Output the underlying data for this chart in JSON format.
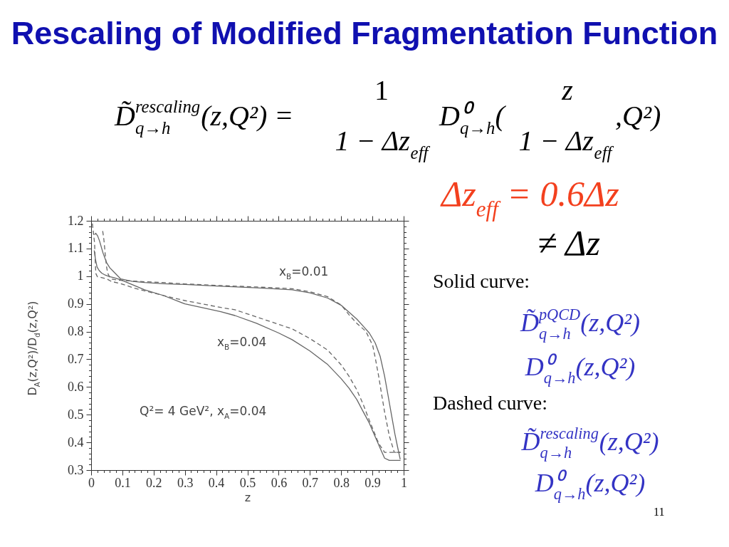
{
  "chart_data": {
    "type": "line",
    "title": "Rescaling of Modified Fragmentation Function",
    "xlabel": "z",
    "ylabel": "D$_{A}$(z,Q²)/D$_{d}$(z,Q²)",
    "xlim": [
      0,
      1
    ],
    "ylim": [
      0.3,
      1.2
    ],
    "xticks": [
      0,
      {
        "value": 0.02,
        "label": null
      },
      {
        "value": 0.04,
        "label": null
      },
      {
        "value": 0.06,
        "label": null
      },
      {
        "value": 0.08,
        "label": null
      },
      0.1,
      {
        "value": 0.12,
        "label": null
      },
      {
        "value": 0.14,
        "label": null
      },
      {
        "value": 0.16,
        "label": null
      },
      {
        "value": 0.18,
        "label": null
      },
      0.2,
      {
        "value": 0.22,
        "label": null
      },
      {
        "value": 0.24,
        "label": null
      },
      {
        "value": 0.26,
        "label": null
      },
      {
        "value": 0.28,
        "label": null
      },
      0.3,
      {
        "value": 0.32,
        "label": null
      },
      {
        "value": 0.34,
        "label": null
      },
      {
        "value": 0.36,
        "label": null
      },
      {
        "value": 0.38,
        "label": null
      },
      0.4,
      {
        "value": 0.42,
        "label": null
      },
      {
        "value": 0.44,
        "label": null
      },
      {
        "value": 0.46,
        "label": null
      },
      {
        "value": 0.48,
        "label": null
      },
      0.5,
      {
        "value": 0.52,
        "label": null
      },
      {
        "value": 0.54,
        "label": null
      },
      {
        "value": 0.56,
        "label": null
      },
      {
        "value": 0.58,
        "label": null
      },
      0.6,
      {
        "value": 0.62,
        "label": null
      },
      {
        "value": 0.64,
        "label": null
      },
      {
        "value": 0.66,
        "label": null
      },
      {
        "value": 0.68,
        "label": null
      },
      0.7,
      {
        "value": 0.72,
        "label": null
      },
      {
        "value": 0.74,
        "label": null
      },
      {
        "value": 0.76,
        "label": null
      },
      {
        "value": 0.78,
        "label": null
      },
      0.8,
      {
        "value": 0.82,
        "label": null
      },
      {
        "value": 0.84,
        "label": null
      },
      {
        "value": 0.86,
        "label": null
      },
      {
        "value": 0.88,
        "label": null
      },
      0.9,
      {
        "value": 0.92,
        "label": null
      },
      {
        "value": 0.94,
        "label": null
      },
      {
        "value": 0.96,
        "label": null
      },
      {
        "value": 0.98,
        "label": null
      },
      1
    ],
    "yticks": [
      0.3,
      {
        "value": 0.32,
        "label": null
      },
      {
        "value": 0.34,
        "label": null
      },
      {
        "value": 0.36,
        "label": null
      },
      {
        "value": 0.38,
        "label": null
      },
      0.4,
      {
        "value": 0.42,
        "label": null
      },
      {
        "value": 0.44,
        "label": null
      },
      {
        "value": 0.46,
        "label": null
      },
      {
        "value": 0.48,
        "label": null
      },
      0.5,
      {
        "value": 0.52,
        "label": null
      },
      {
        "value": 0.54,
        "label": null
      },
      {
        "value": 0.56,
        "label": null
      },
      {
        "value": 0.58,
        "label": null
      },
      0.6,
      {
        "value": 0.62,
        "label": null
      },
      {
        "value": 0.64,
        "label": null
      },
      {
        "value": 0.66,
        "label": null
      },
      {
        "value": 0.68,
        "label": null
      },
      0.7,
      {
        "value": 0.72,
        "label": null
      },
      {
        "value": 0.74,
        "label": null
      },
      {
        "value": 0.76,
        "label": null
      },
      {
        "value": 0.78,
        "label": null
      },
      0.8,
      {
        "value": 0.82,
        "label": null
      },
      {
        "value": 0.84,
        "label": null
      },
      {
        "value": 0.86,
        "label": null
      },
      {
        "value": 0.88,
        "label": null
      },
      0.9,
      {
        "value": 0.92,
        "label": null
      },
      {
        "value": 0.94,
        "label": null
      },
      {
        "value": 0.96,
        "label": null
      },
      {
        "value": 0.98,
        "label": null
      },
      1,
      {
        "value": 1.02,
        "label": null
      },
      {
        "value": 1.04,
        "label": null
      },
      {
        "value": 1.06,
        "label": null
      },
      {
        "value": 1.08,
        "label": null
      },
      1.1,
      {
        "value": 1.12,
        "label": null
      },
      {
        "value": 1.14,
        "label": null
      },
      {
        "value": 1.16,
        "label": null
      },
      {
        "value": 1.18,
        "label": null
      },
      1.2
    ],
    "series": [
      {
        "color": "#666666",
        "line_style": "solid",
        "x": [
          0.011,
          0.015,
          0.021,
          0.027,
          0.038,
          0.049,
          0.06,
          0.072,
          0.095,
          0.133,
          0.171,
          0.232,
          0.3,
          0.415,
          0.53,
          0.643,
          0.7,
          0.757,
          0.8,
          0.825,
          0.85,
          0.871,
          0.89,
          0.909,
          0.925,
          0.939,
          0.95,
          0.962,
          0.972,
          0.981,
          0.989
        ],
        "values": [
          1.15,
          1.155,
          1.145,
          1.127,
          1.084,
          1.05,
          1.03,
          1.016,
          0.99,
          0.981,
          0.977,
          0.973,
          0.97,
          0.964,
          0.958,
          0.951,
          0.94,
          0.921,
          0.895,
          0.87,
          0.845,
          0.819,
          0.795,
          0.759,
          0.71,
          0.639,
          0.57,
          0.493,
          0.43,
          0.381,
          0.339
        ]
      },
      {
        "color": "#666666",
        "line_style": "dashed",
        "x": [
          0.037,
          0.04,
          0.042,
          0.046,
          0.05,
          0.053,
          0.06,
          0.065,
          0.08,
          0.095,
          0.171,
          0.232,
          0.3,
          0.415,
          0.53,
          0.643,
          0.7,
          0.757,
          0.8,
          0.825,
          0.85,
          0.879,
          0.901,
          0.91,
          0.92,
          0.93,
          0.939,
          0.954,
          0.97,
          0.99
        ],
        "values": [
          1.163,
          1.14,
          1.119,
          1.067,
          1.03,
          1.011,
          0.995,
          0.99,
          0.987,
          0.985,
          0.98,
          0.977,
          0.972,
          0.966,
          0.961,
          0.955,
          0.944,
          0.926,
          0.896,
          0.861,
          0.83,
          0.801,
          0.75,
          0.7,
          0.639,
          0.57,
          0.51,
          0.424,
          0.364,
          0.364
        ]
      },
      {
        "color": "#666666",
        "line_style": "solid",
        "x": [
          0.01,
          0.014,
          0.019,
          0.026,
          0.034,
          0.045,
          0.057,
          0.075,
          0.095,
          0.133,
          0.171,
          0.232,
          0.3,
          0.35,
          0.415,
          0.46,
          0.529,
          0.6,
          0.643,
          0.7,
          0.757,
          0.8,
          0.825,
          0.85,
          0.871,
          0.89,
          0.901,
          0.915,
          0.924,
          0.939,
          0.954,
          0.99
        ],
        "values": [
          1.093,
          1.06,
          1.033,
          1.02,
          1.011,
          1.004,
          0.999,
          0.994,
          0.987,
          0.969,
          0.951,
          0.93,
          0.9,
          0.888,
          0.872,
          0.858,
          0.83,
          0.795,
          0.771,
          0.73,
          0.681,
          0.63,
          0.596,
          0.555,
          0.51,
          0.47,
          0.441,
          0.405,
          0.381,
          0.343,
          0.335,
          0.335
        ]
      },
      {
        "color": "#666666",
        "line_style": "dashed",
        "x": [
          0.004,
          0.008,
          0.011,
          0.013,
          0.015,
          0.02,
          0.03,
          0.05,
          0.065,
          0.095,
          0.141,
          0.186,
          0.25,
          0.3,
          0.415,
          0.46,
          0.529,
          0.643,
          0.7,
          0.757,
          0.8,
          0.825,
          0.85,
          0.871,
          0.89,
          0.901,
          0.915,
          0.924,
          0.939,
          0.99
        ],
        "values": [
          1.19,
          1.15,
          1.12,
          1.06,
          1.01,
          0.998,
          0.996,
          0.99,
          0.981,
          0.973,
          0.956,
          0.943,
          0.925,
          0.912,
          0.887,
          0.879,
          0.853,
          0.81,
          0.775,
          0.733,
          0.68,
          0.639,
          0.59,
          0.536,
          0.48,
          0.45,
          0.41,
          0.39,
          0.364,
          0.364
        ]
      }
    ],
    "annotations": [
      "D̃$^{rescaling}$$_{q→h}$(z,Q²) =",
      "1",
      "1 − Δz$_{eff}$",
      "D⁰$_{q→h}$(",
      "z",
      "1 − Δz$_{eff}$",
      ",Q²)",
      "Δz$_{eff}$ = 0.6Δz",
      "≠ Δz",
      "x$_{B}$=0.01",
      "Solid curve:",
      "D̃$^{pQCD}$$_{q→h}$(z,Q²)",
      "x$_{B}$=0.04",
      "D⁰$_{q→h}$(z,Q²)",
      "Dashed curve:",
      "D̃$^{rescaling}$$_{q→h}$(z,Q²)",
      "D⁰$_{q→h}$(z,Q²)",
      "Q²= 4 GeV², x$_{A}$=0.04",
      "11"
    ]
  }
}
